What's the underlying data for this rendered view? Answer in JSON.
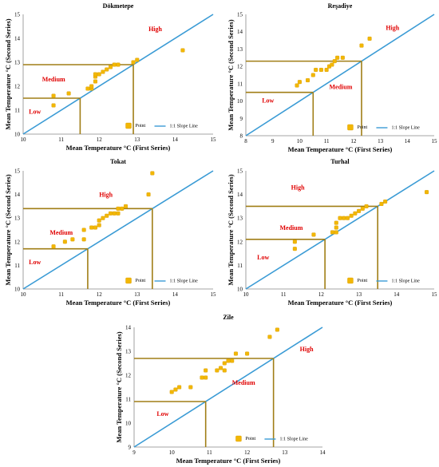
{
  "colors": {
    "point": "#f2b705",
    "point_stroke": "#d89b00",
    "slope": "#3a9bd5",
    "zone": "#a07e16",
    "label": "#e00000"
  },
  "chart_data": [
    {
      "type": "scatter",
      "title": "Dökmetepe",
      "xlabel": "Mean Temperature °C (First Series)",
      "ylabel": "Mean Temperature °C (Second Series)",
      "xlim": [
        10,
        15
      ],
      "ylim": [
        10,
        15
      ],
      "xticks": [
        "10",
        "11",
        "12",
        "13",
        "14",
        "15"
      ],
      "yticks": [
        "10",
        "11",
        "12",
        "13",
        "14",
        "15"
      ],
      "thresholds": [
        11.5,
        12.9
      ],
      "zone_labels": {
        "low": "Low",
        "medium": "Medium",
        "high": "High"
      },
      "label_pos": {
        "low": [
          10.15,
          10.85
        ],
        "medium": [
          10.5,
          12.2
        ],
        "high": [
          13.3,
          14.3
        ]
      },
      "legend": {
        "point": "Point",
        "line": "1:1 Slope Line"
      },
      "grid": false,
      "points": [
        [
          10.8,
          11.2
        ],
        [
          10.8,
          11.6
        ],
        [
          11.2,
          11.7
        ],
        [
          11.7,
          11.9
        ],
        [
          11.8,
          11.9
        ],
        [
          11.8,
          12.0
        ],
        [
          11.9,
          12.2
        ],
        [
          11.9,
          12.4
        ],
        [
          11.9,
          12.5
        ],
        [
          12.0,
          12.5
        ],
        [
          12.1,
          12.6
        ],
        [
          12.2,
          12.7
        ],
        [
          12.3,
          12.8
        ],
        [
          12.4,
          12.9
        ],
        [
          12.5,
          12.9
        ],
        [
          12.9,
          13.0
        ],
        [
          13.0,
          13.1
        ],
        [
          14.2,
          13.5
        ]
      ]
    },
    {
      "type": "scatter",
      "title": "Reşadiye",
      "xlabel": "Mean Temperature °C (First Series)",
      "ylabel": "Mean Temperature °C (Second Series)",
      "xlim": [
        8,
        15
      ],
      "ylim": [
        8,
        15
      ],
      "xticks": [
        "8",
        "9",
        "10",
        "11",
        "12",
        "13",
        "14",
        "15"
      ],
      "yticks": [
        "8",
        "9",
        "10",
        "11",
        "12",
        "13",
        "14",
        "15"
      ],
      "thresholds": [
        10.5,
        12.3
      ],
      "zone_labels": {
        "low": "Low",
        "medium": "Medium",
        "high": "High"
      },
      "label_pos": {
        "low": [
          8.6,
          9.9
        ],
        "medium": [
          11.1,
          10.7
        ],
        "high": [
          13.2,
          14.1
        ]
      },
      "legend": {
        "point": "Point",
        "line": "1:1 Slope Line"
      },
      "grid": false,
      "points": [
        [
          9.9,
          10.9
        ],
        [
          10.0,
          11.1
        ],
        [
          10.3,
          11.2
        ],
        [
          10.5,
          11.5
        ],
        [
          10.6,
          11.8
        ],
        [
          10.8,
          11.8
        ],
        [
          11.0,
          11.8
        ],
        [
          11.1,
          12.0
        ],
        [
          11.2,
          12.1
        ],
        [
          11.3,
          12.3
        ],
        [
          11.4,
          12.5
        ],
        [
          11.6,
          12.5
        ],
        [
          12.3,
          13.2
        ],
        [
          12.6,
          13.6
        ]
      ]
    },
    {
      "type": "scatter",
      "title": "Tokat",
      "xlabel": "Mean Temperature °C (First Series)",
      "ylabel": "Mean Temperature °C (Second Series)",
      "xlim": [
        10,
        15
      ],
      "ylim": [
        10,
        15
      ],
      "xticks": [
        "10",
        "11",
        "12",
        "13",
        "14",
        "15"
      ],
      "yticks": [
        "10",
        "11",
        "12",
        "13",
        "14",
        "15"
      ],
      "thresholds": [
        11.7,
        13.4
      ],
      "zone_labels": {
        "low": "Low",
        "medium": "Medium",
        "high": "High"
      },
      "label_pos": {
        "low": [
          10.15,
          11.05
        ],
        "medium": [
          10.7,
          12.3
        ],
        "high": [
          12.0,
          13.9
        ]
      },
      "legend": {
        "point": "Point",
        "line": "1:1 Slope Line"
      },
      "grid": false,
      "points": [
        [
          10.8,
          11.8
        ],
        [
          11.1,
          12.0
        ],
        [
          11.3,
          12.1
        ],
        [
          11.6,
          12.1
        ],
        [
          11.6,
          12.5
        ],
        [
          11.8,
          12.6
        ],
        [
          11.9,
          12.6
        ],
        [
          12.0,
          12.7
        ],
        [
          12.0,
          12.9
        ],
        [
          12.1,
          13.0
        ],
        [
          12.2,
          13.1
        ],
        [
          12.3,
          13.2
        ],
        [
          12.4,
          13.2
        ],
        [
          12.5,
          13.2
        ],
        [
          12.5,
          13.4
        ],
        [
          12.6,
          13.4
        ],
        [
          12.7,
          13.5
        ],
        [
          13.3,
          14.0
        ],
        [
          13.4,
          14.9
        ]
      ]
    },
    {
      "type": "scatter",
      "title": "Turhal",
      "xlabel": "Mean Temperature °C (First Series)",
      "ylabel": "Mean Temperature °C (Second Series)",
      "xlim": [
        10,
        15
      ],
      "ylim": [
        10,
        15
      ],
      "xticks": [
        "10",
        "11",
        "12",
        "13",
        "14",
        "15"
      ],
      "yticks": [
        "10",
        "11",
        "12",
        "13",
        "14",
        "15"
      ],
      "thresholds": [
        12.1,
        13.5
      ],
      "zone_labels": {
        "low": "Low",
        "medium": "Medium",
        "high": "High"
      },
      "label_pos": {
        "low": [
          10.3,
          11.25
        ],
        "medium": [
          10.9,
          12.5
        ],
        "high": [
          11.2,
          14.2
        ]
      },
      "legend": {
        "point": "Point",
        "line": "1:1 Slope Line"
      },
      "grid": false,
      "points": [
        [
          11.3,
          11.7
        ],
        [
          11.3,
          12.0
        ],
        [
          11.8,
          12.3
        ],
        [
          12.3,
          12.4
        ],
        [
          12.4,
          12.4
        ],
        [
          12.4,
          12.6
        ],
        [
          12.4,
          12.8
        ],
        [
          12.5,
          13.0
        ],
        [
          12.6,
          13.0
        ],
        [
          12.7,
          13.0
        ],
        [
          12.8,
          13.1
        ],
        [
          12.9,
          13.2
        ],
        [
          13.0,
          13.3
        ],
        [
          13.1,
          13.4
        ],
        [
          13.2,
          13.5
        ],
        [
          13.6,
          13.6
        ],
        [
          13.7,
          13.7
        ],
        [
          14.8,
          14.1
        ]
      ]
    },
    {
      "type": "scatter",
      "title": "Zile",
      "xlabel": "Mean Temperature °C (First Series)",
      "ylabel": "Mean Temperature °C (Second Series)",
      "xlim": [
        9,
        14
      ],
      "ylim": [
        9,
        14
      ],
      "xticks": [
        "9",
        "10",
        "11",
        "12",
        "13",
        "14"
      ],
      "yticks": [
        "9",
        "10",
        "11",
        "12",
        "13",
        "14"
      ],
      "thresholds": [
        10.9,
        12.7
      ],
      "zone_labels": {
        "low": "Low",
        "medium": "Medium",
        "high": "High"
      },
      "label_pos": {
        "low": [
          9.6,
          10.3
        ],
        "medium": [
          11.6,
          11.6
        ],
        "high": [
          13.4,
          13.0
        ]
      },
      "legend": {
        "point": "Point",
        "line": "1:1 Slope Line"
      },
      "grid": false,
      "points": [
        [
          10.0,
          11.3
        ],
        [
          10.1,
          11.4
        ],
        [
          10.2,
          11.5
        ],
        [
          10.5,
          11.5
        ],
        [
          10.8,
          11.9
        ],
        [
          10.9,
          11.9
        ],
        [
          10.9,
          12.2
        ],
        [
          11.2,
          12.2
        ],
        [
          11.3,
          12.3
        ],
        [
          11.4,
          12.2
        ],
        [
          11.4,
          12.5
        ],
        [
          11.5,
          12.6
        ],
        [
          11.6,
          12.6
        ],
        [
          11.7,
          12.9
        ],
        [
          12.0,
          12.9
        ],
        [
          12.6,
          13.6
        ],
        [
          12.8,
          13.9
        ]
      ]
    }
  ]
}
